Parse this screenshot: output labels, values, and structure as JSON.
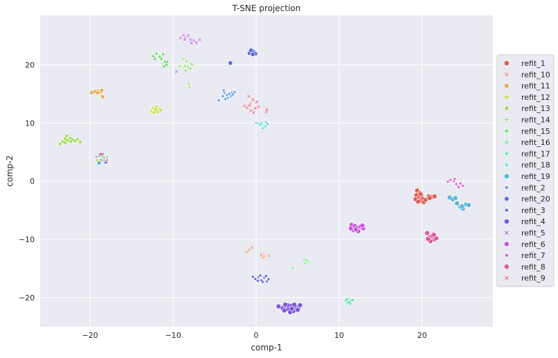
{
  "chart_data": {
    "type": "scatter",
    "title": "T-SNE projection",
    "xlabel": "comp-1",
    "ylabel": "comp-2",
    "xlim": [
      -26,
      28.5
    ],
    "ylim": [
      -25,
      28.5
    ],
    "xticks": [
      -20,
      -10,
      0,
      10,
      20
    ],
    "yticks": [
      -20,
      -10,
      0,
      10,
      20
    ],
    "grid": true,
    "background": "#eaeaf2",
    "legend_placement": "right",
    "series": [
      {
        "name": "refit_1",
        "color": "#db5f57",
        "marker": "circle",
        "points": [
          [
            19.4,
            -1.6
          ],
          [
            19.7,
            -2.0
          ],
          [
            19.3,
            -2.4
          ],
          [
            19.9,
            -2.5
          ],
          [
            19.6,
            -2.9
          ],
          [
            19.2,
            -3.1
          ],
          [
            20.0,
            -3.0
          ],
          [
            19.7,
            -3.4
          ],
          [
            20.2,
            -3.6
          ],
          [
            19.5,
            -3.5
          ],
          [
            20.4,
            -3.2
          ],
          [
            20.8,
            -2.6
          ],
          [
            21.2,
            -2.7
          ],
          [
            21.5,
            -2.6
          ],
          [
            20.9,
            -2.9
          ],
          [
            19.8,
            -2.2
          ]
        ]
      },
      {
        "name": "refit_10",
        "color": "#db7e57",
        "marker": "x",
        "points": [
          [
            -1.1,
            -12.1
          ],
          [
            -0.8,
            -11.8
          ],
          [
            -0.5,
            -11.4
          ],
          [
            0.7,
            -12.5
          ],
          [
            1.0,
            -12.9
          ],
          [
            1.5,
            -12.8
          ],
          [
            0.8,
            -13.1
          ],
          [
            0.6,
            -12.7
          ]
        ]
      },
      {
        "name": "refit_11",
        "color": "#dbb057",
        "marker": "square",
        "points": [
          [
            -19.8,
            15.2
          ],
          [
            -19.4,
            15.4
          ],
          [
            -19.0,
            15.5
          ],
          [
            -18.8,
            15.3
          ],
          [
            -18.6,
            15.6
          ],
          [
            -18.5,
            14.5
          ],
          [
            -19.1,
            15.2
          ]
        ]
      },
      {
        "name": "refit_12",
        "color": "#cbdb57",
        "marker": "plus",
        "points": [
          [
            -12.6,
            12.0
          ],
          [
            -12.4,
            12.6
          ],
          [
            -12.2,
            12.2
          ],
          [
            -12.0,
            12.8
          ],
          [
            -11.8,
            12.1
          ],
          [
            -11.6,
            12.4
          ],
          [
            -12.3,
            11.8
          ],
          [
            -11.9,
            11.9
          ],
          [
            -12.1,
            12.4
          ],
          [
            -11.5,
            12.2
          ]
        ]
      },
      {
        "name": "refit_13",
        "color": "#a0db57",
        "marker": "diamond",
        "points": [
          [
            -23.6,
            6.4
          ],
          [
            -23.3,
            6.8
          ],
          [
            -23.0,
            7.3
          ],
          [
            -22.7,
            7.0
          ],
          [
            -22.4,
            7.4
          ],
          [
            -22.1,
            7.1
          ],
          [
            -21.8,
            6.9
          ],
          [
            -21.5,
            7.2
          ],
          [
            -21.2,
            6.7
          ],
          [
            -22.8,
            7.8
          ],
          [
            -23.0,
            6.6
          ],
          [
            -22.3,
            6.8
          ]
        ]
      },
      {
        "name": "refit_14",
        "color": "#7edb57",
        "marker": "plus-thin",
        "points": [
          [
            -9.2,
            19.8
          ],
          [
            -8.4,
            20.6
          ],
          [
            -8.2,
            19.6
          ],
          [
            -7.9,
            19.3
          ],
          [
            -7.8,
            20.2
          ],
          [
            -8.5,
            19.0
          ],
          [
            -8.1,
            16.7
          ],
          [
            -8.0,
            16.1
          ],
          [
            -8.6,
            19.8
          ],
          [
            -8.8,
            21.0
          ],
          [
            -7.7,
            20.0
          ]
        ]
      },
      {
        "name": "refit_15",
        "color": "#5cdb57",
        "marker": "triangle-up",
        "points": [
          [
            -12.4,
            21.5
          ],
          [
            -12.0,
            21.9
          ],
          [
            -11.6,
            21.4
          ],
          [
            -11.2,
            21.8
          ],
          [
            -11.5,
            20.9
          ],
          [
            -11.0,
            20.5
          ],
          [
            -10.8,
            20.0
          ],
          [
            -11.4,
            21.0
          ],
          [
            -12.2,
            21.0
          ],
          [
            -11.1,
            19.7
          ],
          [
            -10.7,
            20.5
          ]
        ]
      },
      {
        "name": "refit_16",
        "color": "#57db80",
        "marker": "x",
        "points": [
          [
            5.8,
            -13.4
          ],
          [
            6.0,
            -13.8
          ],
          [
            6.3,
            -13.9
          ],
          [
            5.9,
            -14.1
          ],
          [
            6.1,
            -13.6
          ],
          [
            4.4,
            -14.9
          ]
        ]
      },
      {
        "name": "refit_17",
        "color": "#57dbab",
        "marker": "triangle-down",
        "points": [
          [
            10.8,
            -20.5
          ],
          [
            11.1,
            -20.2
          ],
          [
            11.4,
            -20.6
          ],
          [
            11.0,
            -20.9
          ],
          [
            11.3,
            -21.1
          ],
          [
            10.9,
            -20.3
          ],
          [
            11.6,
            -20.4
          ],
          [
            11.2,
            -20.8
          ]
        ]
      },
      {
        "name": "refit_18",
        "color": "#57dbd6",
        "marker": "star",
        "points": [
          [
            0.0,
            10.0
          ],
          [
            0.3,
            9.9
          ],
          [
            0.6,
            10.0
          ],
          [
            0.9,
            9.5
          ],
          [
            1.2,
            10.1
          ],
          [
            1.4,
            9.8
          ],
          [
            0.8,
            9.1
          ],
          [
            1.1,
            9.4
          ],
          [
            0.5,
            9.7
          ]
        ]
      },
      {
        "name": "refit_19",
        "color": "#57b5db",
        "marker": "circle",
        "points": [
          [
            23.3,
            -2.8
          ],
          [
            23.7,
            -3.1
          ],
          [
            24.0,
            -2.9
          ],
          [
            24.2,
            -3.8
          ],
          [
            24.6,
            -4.4
          ],
          [
            24.9,
            -4.7
          ],
          [
            25.3,
            -4.0
          ],
          [
            25.6,
            -4.1
          ],
          [
            24.8,
            -4.3
          ]
        ]
      },
      {
        "name": "refit_2",
        "color": "#5796db",
        "marker": "star",
        "points": [
          [
            -4.5,
            13.9
          ],
          [
            -4.0,
            14.6
          ],
          [
            -3.8,
            15.2
          ],
          [
            -3.5,
            14.8
          ],
          [
            -3.2,
            15.0
          ],
          [
            -2.9,
            15.3
          ],
          [
            -2.6,
            15.3
          ],
          [
            -3.4,
            14.3
          ],
          [
            -3.0,
            14.6
          ],
          [
            -3.7,
            14.1
          ],
          [
            -2.8,
            14.9
          ],
          [
            -3.9,
            15.6
          ]
        ]
      },
      {
        "name": "refit_20",
        "color": "#576bdb",
        "marker": "pentagon",
        "points": [
          [
            -0.8,
            22.0
          ],
          [
            -0.5,
            22.4
          ],
          [
            -0.3,
            22.2
          ],
          [
            -0.1,
            21.9
          ],
          [
            -0.4,
            21.8
          ],
          [
            -0.6,
            22.5
          ],
          [
            -3.1,
            20.3
          ]
        ]
      },
      {
        "name": "refit_3",
        "color": "#5a57db",
        "marker": "star",
        "points": [
          [
            -0.4,
            -16.4
          ],
          [
            -0.1,
            -16.8
          ],
          [
            0.3,
            -16.5
          ],
          [
            0.6,
            -17.0
          ],
          [
            1.0,
            -16.6
          ],
          [
            1.3,
            -17.2
          ],
          [
            1.5,
            -16.8
          ],
          [
            0.8,
            -17.3
          ],
          [
            0.2,
            -17.1
          ],
          [
            1.2,
            -16.3
          ],
          [
            0.5,
            -16.2
          ]
        ]
      },
      {
        "name": "refit_4",
        "color": "#7f57db",
        "marker": "circle",
        "points": [
          [
            2.7,
            -21.5
          ],
          [
            3.2,
            -21.8
          ],
          [
            3.6,
            -21.6
          ],
          [
            3.9,
            -22.0
          ],
          [
            4.2,
            -21.4
          ],
          [
            4.5,
            -22.3
          ],
          [
            4.8,
            -21.6
          ],
          [
            5.1,
            -21.8
          ],
          [
            5.3,
            -21.3
          ],
          [
            3.4,
            -22.2
          ],
          [
            4.1,
            -22.5
          ],
          [
            4.6,
            -21.2
          ],
          [
            3.8,
            -21.3
          ],
          [
            5.0,
            -22.1
          ],
          [
            4.3,
            -21.9
          ],
          [
            3.5,
            -21.2
          ]
        ]
      },
      {
        "name": "refit_5",
        "color": "#a357db",
        "marker": "x",
        "points": [
          [
            -9.1,
            24.6
          ],
          [
            -8.8,
            25.0
          ],
          [
            -8.5,
            24.7
          ],
          [
            -8.2,
            25.0
          ],
          [
            -7.9,
            24.3
          ],
          [
            -7.5,
            24.1
          ],
          [
            -7.2,
            23.8
          ],
          [
            -6.8,
            24.3
          ],
          [
            -8.6,
            24.3
          ],
          [
            -9.6,
            18.8
          ],
          [
            -7.8,
            23.7
          ]
        ]
      },
      {
        "name": "refit_6",
        "color": "#c957db",
        "marker": "circle",
        "points": [
          [
            11.5,
            -7.5
          ],
          [
            11.9,
            -7.7
          ],
          [
            12.2,
            -8.0
          ],
          [
            12.6,
            -7.8
          ],
          [
            12.9,
            -8.1
          ],
          [
            12.3,
            -8.6
          ],
          [
            11.7,
            -8.4
          ],
          [
            11.4,
            -8.1
          ],
          [
            12.0,
            -8.3
          ],
          [
            12.8,
            -7.6
          ]
        ]
      },
      {
        "name": "refit_7",
        "color": "#db57cb",
        "marker": "star",
        "points": [
          [
            23.1,
            -0.1
          ],
          [
            23.4,
            0.2
          ],
          [
            23.8,
            0.0
          ],
          [
            24.1,
            -0.5
          ],
          [
            24.3,
            -0.9
          ],
          [
            24.6,
            -0.4
          ],
          [
            24.9,
            -0.8
          ],
          [
            24.4,
            -1.0
          ],
          [
            23.9,
            0.4
          ]
        ]
      },
      {
        "name": "refit_8",
        "color": "#db579c",
        "marker": "circle",
        "points": [
          [
            20.6,
            -8.9
          ],
          [
            20.9,
            -9.6
          ],
          [
            21.2,
            -9.4
          ],
          [
            21.5,
            -10.0
          ],
          [
            21.7,
            -9.8
          ],
          [
            21.0,
            -10.3
          ],
          [
            21.4,
            -9.2
          ],
          [
            20.7,
            -9.9
          ]
        ]
      },
      {
        "name": "refit_9",
        "color": "#db5770",
        "marker": "x",
        "points": [
          [
            -1.4,
            12.9
          ],
          [
            -1.1,
            12.6
          ],
          [
            -0.9,
            14.6
          ],
          [
            -0.7,
            13.3
          ],
          [
            -0.4,
            14.0
          ],
          [
            -0.1,
            12.5
          ],
          [
            0.1,
            13.6
          ],
          [
            0.3,
            12.8
          ],
          [
            -0.6,
            12.1
          ],
          [
            -0.3,
            11.8
          ],
          [
            1.2,
            11.9
          ],
          [
            1.3,
            12.3
          ],
          [
            -0.8,
            13.0
          ]
        ]
      }
    ],
    "clusters_near_origin": [
      {
        "at": [
          -18.5,
          4.0
        ],
        "series": [
          "refit_1",
          "refit_2",
          "refit_3",
          "refit_4",
          "refit_5",
          "refit_6",
          "refit_7",
          "refit_8",
          "refit_9",
          "refit_12",
          "refit_14",
          "refit_16",
          "refit_17",
          "refit_18",
          "refit_19"
        ]
      }
    ]
  }
}
